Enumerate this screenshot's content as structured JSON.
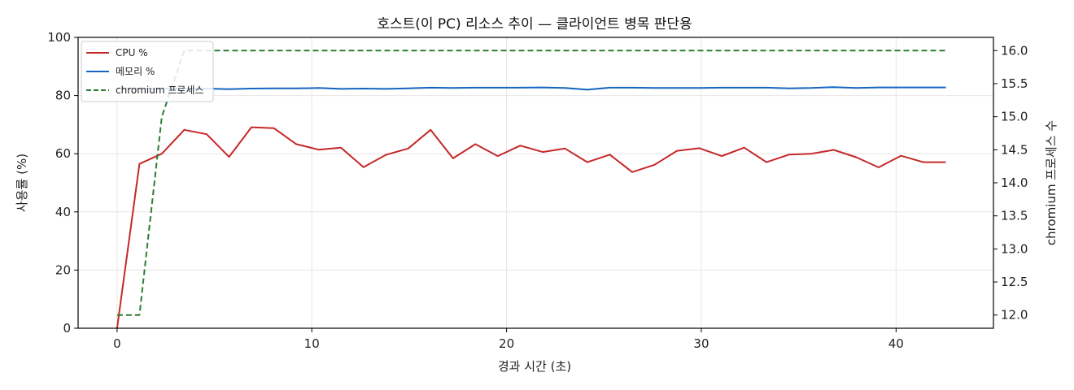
{
  "chart_data": {
    "type": "line",
    "title": "호스트(이 PC) 리소스 추이 — 클라이언트 병목 판단용",
    "xlabel": "경과 시간 (초)",
    "ylabel": "사용률 (%)",
    "y2label": "chromium 프로세스 수",
    "xlim": [
      -2,
      45
    ],
    "ylim": [
      0,
      100
    ],
    "y2lim": [
      11.8,
      16.2
    ],
    "x_ticks": [
      "0",
      "10",
      "20",
      "30",
      "40"
    ],
    "y_ticks": [
      "0",
      "20",
      "40",
      "60",
      "80",
      "100"
    ],
    "y2_ticks": [
      "12.0",
      "12.5",
      "13.0",
      "13.5",
      "14.0",
      "14.5",
      "15.0",
      "15.5",
      "16.0"
    ],
    "grid": true,
    "legend_position": "top-left",
    "x": [
      0,
      1.15,
      2.3,
      3.45,
      4.6,
      5.75,
      6.9,
      8.05,
      9.2,
      10.35,
      11.5,
      12.65,
      13.8,
      14.95,
      16.1,
      17.25,
      18.4,
      19.55,
      20.7,
      21.85,
      23,
      24.15,
      25.3,
      26.45,
      27.6,
      28.75,
      29.9,
      31.05,
      32.2,
      33.35,
      34.5,
      35.65,
      36.8,
      37.95,
      39.1,
      40.25,
      41.4,
      42.55
    ],
    "series": [
      {
        "name": "CPU %",
        "axis": "left",
        "color": "#c62828",
        "dash": "solid",
        "values": [
          0,
          56.5,
          60,
          68.2,
          66.7,
          58.9,
          69.1,
          68.8,
          63.3,
          61.4,
          62.1,
          55.4,
          59.6,
          61.8,
          68.2,
          58.4,
          63.3,
          59.2,
          62.8,
          60.6,
          61.8,
          57.1,
          59.7,
          53.7,
          56.2,
          61,
          61.9,
          59.2,
          62.1,
          57.1,
          59.7,
          60,
          61.3,
          58.8,
          55.3,
          59.3,
          57.1,
          57.1
        ]
      },
      {
        "name": "메모리 %",
        "axis": "left",
        "color": "#1565c0",
        "dash": "solid",
        "values": [
          82.5,
          82.4,
          82.4,
          82.4,
          82.4,
          82.2,
          82.4,
          82.5,
          82.5,
          82.6,
          82.3,
          82.4,
          82.3,
          82.5,
          82.7,
          82.6,
          82.7,
          82.7,
          82.7,
          82.8,
          82.6,
          82,
          82.7,
          82.7,
          82.6,
          82.6,
          82.6,
          82.7,
          82.7,
          82.7,
          82.5,
          82.6,
          82.9,
          82.6,
          82.8,
          82.8,
          82.8,
          82.8
        ]
      },
      {
        "name": "chromium 프로세스",
        "axis": "right",
        "color": "#2e7d32",
        "dash": "dashed",
        "values": [
          12,
          12,
          15,
          16,
          16,
          16,
          16,
          16,
          16,
          16,
          16,
          16,
          16,
          16,
          16,
          16,
          16,
          16,
          16,
          16,
          16,
          16,
          16,
          16,
          16,
          16,
          16,
          16,
          16,
          16,
          16,
          16,
          16,
          16,
          16,
          16,
          16,
          16
        ]
      }
    ]
  }
}
